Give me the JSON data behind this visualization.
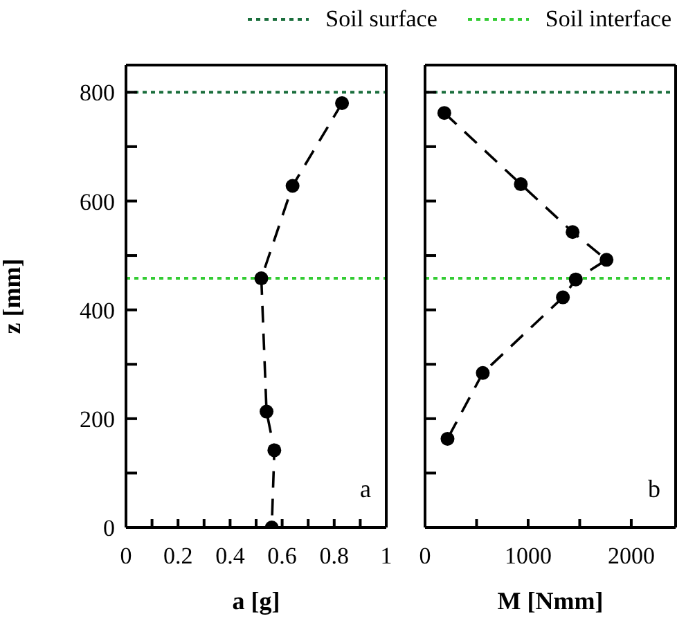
{
  "chart_data": [
    {
      "type": "line",
      "ylabel": "z [mm]",
      "xlabel": "a [g]",
      "xlim": [
        0,
        1
      ],
      "xticks": [
        0,
        0.2,
        0.4,
        0.6,
        0.8,
        1,
        {
          "value": 0.1,
          "label": null
        },
        {
          "value": 0.3,
          "label": null
        },
        {
          "value": 0.5,
          "label": null
        },
        {
          "value": 0.7,
          "label": null
        },
        {
          "value": 0.9,
          "label": null
        }
      ],
      "ylim": [
        0,
        850
      ],
      "yticks": [
        0,
        200,
        400,
        600,
        800,
        {
          "value": 100,
          "label": null
        },
        {
          "value": 300,
          "label": null
        },
        {
          "value": 500,
          "label": null
        },
        {
          "value": 700,
          "label": null
        }
      ],
      "marker": "circle",
      "line_style": "dashed",
      "legend": "top",
      "series": [
        {
          "color": "#000000",
          "x": [
            0.83,
            0.64,
            0.52,
            0.54,
            0.57,
            0.56
          ],
          "values": [
            780,
            628,
            458,
            213,
            142,
            0
          ]
        }
      ],
      "ref_lines": [
        {
          "axis": "y",
          "value": 800,
          "label": "Soil surface",
          "color": "#1a6e3c",
          "line_style": "dotted"
        },
        {
          "axis": "y",
          "value": 458,
          "label": "Soil interface",
          "color": "#33cc33",
          "line_style": "dotted"
        }
      ],
      "annotations": [
        "a"
      ]
    },
    {
      "type": "line",
      "xlabel": "M [Nmm]",
      "xlim": [
        0,
        2430
      ],
      "xticks": [
        0,
        1000,
        2000,
        {
          "value": 500,
          "label": null
        },
        {
          "value": 1500,
          "label": null
        }
      ],
      "ylim": [
        0,
        850
      ],
      "yticks": [
        0,
        200,
        400,
        600,
        800,
        {
          "value": 100,
          "label": null
        },
        {
          "value": 300,
          "label": null
        },
        {
          "value": 500,
          "label": null
        },
        {
          "value": 700,
          "label": null
        }
      ],
      "tick_labels": "x",
      "marker": "circle",
      "line_style": "dashed",
      "series": [
        {
          "color": "#000000",
          "x": [
            187,
            929,
            1431,
            1760,
            1462,
            1337,
            560,
            218
          ],
          "values": [
            762,
            631,
            543,
            492,
            456,
            423,
            284,
            163
          ]
        }
      ],
      "ref_lines": [
        {
          "axis": "y",
          "value": 800,
          "color": "#1a6e3c",
          "line_style": "dotted"
        },
        {
          "axis": "y",
          "value": 458,
          "color": "#33cc33",
          "line_style": "dotted"
        }
      ],
      "annotations": [
        "b"
      ]
    }
  ]
}
